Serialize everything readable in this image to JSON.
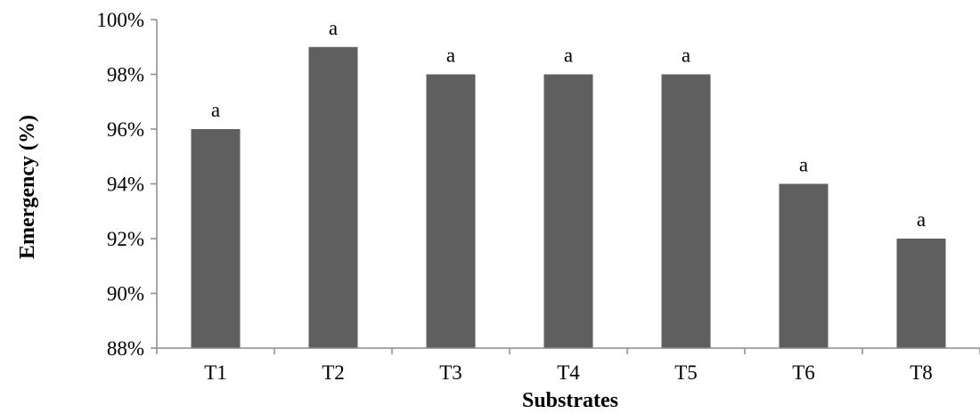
{
  "chart_data": {
    "type": "bar",
    "categories": [
      "T1",
      "T2",
      "T3",
      "T4",
      "T5",
      "T6",
      "T8"
    ],
    "values": [
      96,
      99,
      98,
      98,
      98,
      94,
      92
    ],
    "data_labels": [
      "a",
      "a",
      "a",
      "a",
      "a",
      "a",
      "a"
    ],
    "title": "",
    "xlabel": "Substrates",
    "ylabel": "Emergency (%)",
    "ylim": [
      88,
      100
    ],
    "yticks": [
      88,
      90,
      92,
      94,
      96,
      98,
      100
    ],
    "ytick_labels": [
      "88%",
      "90%",
      "92%",
      "94%",
      "96%",
      "98%",
      "100%"
    ],
    "grid": false,
    "legend": "none",
    "bar_color": "#5f5f5f",
    "axis_color": "#8c8c8c"
  }
}
